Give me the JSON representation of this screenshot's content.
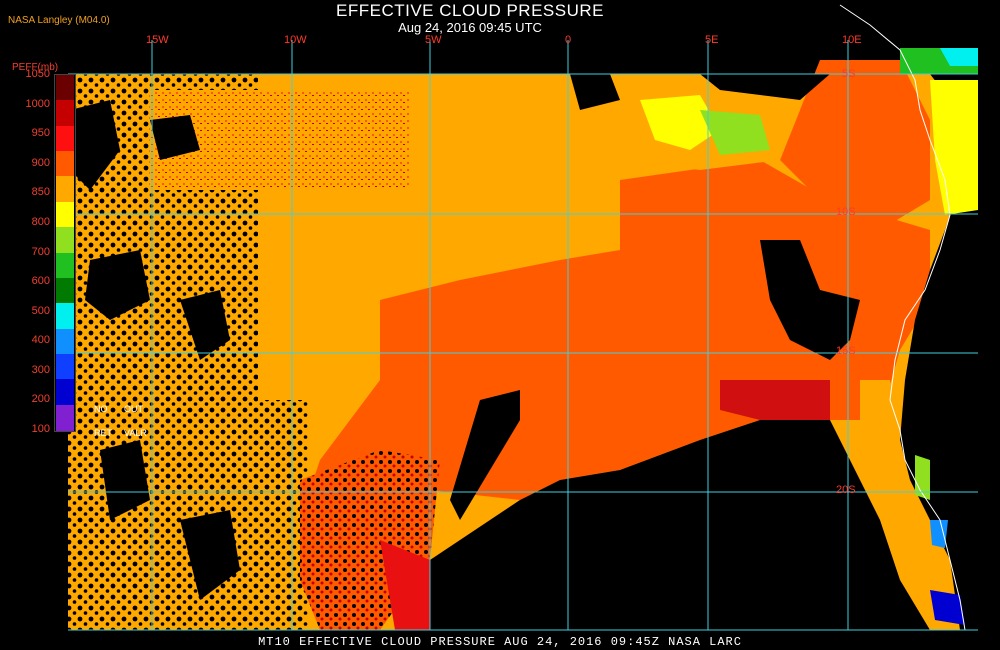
{
  "header": {
    "title": "EFFECTIVE CLOUD PRESSURE",
    "subtitle": "Aug 24, 2016 09:45 UTC",
    "provider": "NASA Langley (M04.0)"
  },
  "legend": {
    "title": "PEFF(mb)",
    "ticks": [
      "1050",
      "1000",
      "950",
      "900",
      "850",
      "800",
      "700",
      "600",
      "500",
      "400",
      "300",
      "200",
      "100"
    ],
    "colors": [
      "#6b0000",
      "#c40000",
      "#ff1010",
      "#ff5a00",
      "#ffa800",
      "#ffff00",
      "#90e020",
      "#20c020",
      "#007a00",
      "#00f0f0",
      "#1090ff",
      "#1040ff",
      "#0000d0",
      "#8020d0"
    ],
    "notes": [
      "NO",
      "OUT",
      "RET",
      "VALR"
    ]
  },
  "map": {
    "lon_labels": [
      "15W",
      "10W",
      "5W",
      "0",
      "5E",
      "10E"
    ],
    "lat_labels": [
      "5S",
      "10S",
      "15S",
      "20S"
    ],
    "grid_color": "#40d0e0",
    "coast_color": "#ffffff"
  },
  "footer": {
    "text": "MT10  EFFECTIVE CLOUD PRESSURE  AUG 24, 2016 09:45Z  NASA LARC"
  }
}
